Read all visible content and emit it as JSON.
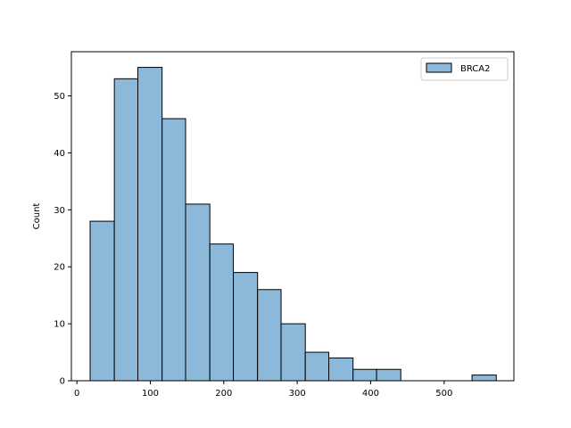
{
  "chart_data": {
    "type": "bar",
    "subtype": "histogram",
    "title": "",
    "xlabel": "",
    "ylabel": "Count",
    "xlim": [
      -7.5,
      595
    ],
    "ylim": [
      0,
      57.75
    ],
    "x_ticks": [
      0,
      100,
      200,
      300,
      400,
      500
    ],
    "y_ticks": [
      0,
      10,
      20,
      30,
      40,
      50
    ],
    "grid": false,
    "legend": {
      "position": "top-right",
      "entries": [
        "BRCA2"
      ]
    },
    "bin_edges": [
      18,
      51,
      83,
      116,
      148,
      181,
      213,
      246,
      278,
      311,
      343,
      376,
      408,
      441,
      473,
      506,
      538,
      571
    ],
    "series": [
      {
        "name": "BRCA2",
        "color": "#8cb9da",
        "edgecolor": "#000000",
        "values": [
          28,
          53,
          55,
          46,
          31,
          24,
          19,
          16,
          10,
          5,
          4,
          2,
          2,
          0,
          0,
          0,
          1
        ]
      }
    ]
  }
}
